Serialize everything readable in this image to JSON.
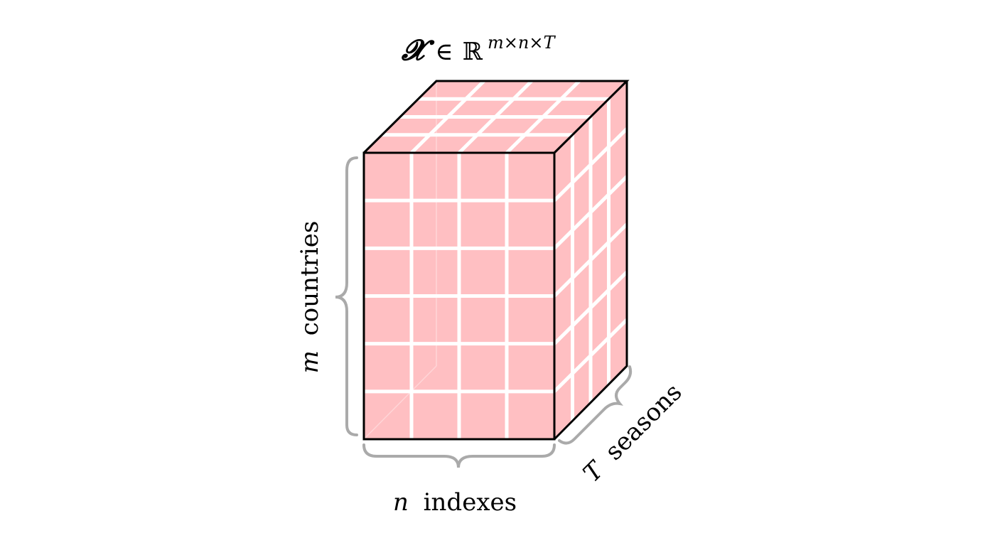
{
  "title": {
    "tensor_symbol": "𝓧",
    "element_of": "∈",
    "field": "ℝ",
    "superscript": "m×n×T"
  },
  "labels": {
    "rows": {
      "variable": "m",
      "text": "countries"
    },
    "columns": {
      "variable": "n",
      "text": "indexes"
    },
    "depth": {
      "variable": "T",
      "text": "seasons"
    }
  },
  "grid": {
    "rows": 6,
    "columns": 4,
    "depth": 4
  },
  "colors": {
    "cell_fill": "#ffbfc2",
    "grid_line": "#ffffff",
    "edge": "#000000",
    "brace": "#aaaaaa"
  }
}
